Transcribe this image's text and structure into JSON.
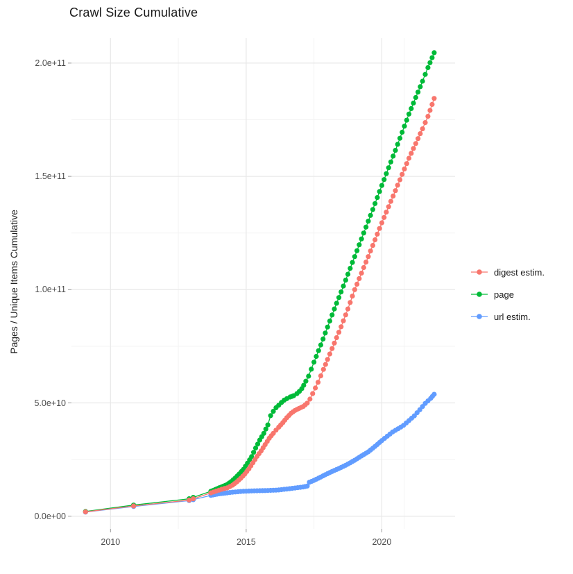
{
  "title": "Crawl Size Cumulative",
  "y_axis_title": "Pages / Unique Items Cumulative",
  "legend": {
    "position": "right",
    "items": [
      {
        "label": "digest estim.",
        "color": "#F8766D"
      },
      {
        "label": "page",
        "color": "#00BA38"
      },
      {
        "label": "url estim.",
        "color": "#619CFF"
      }
    ]
  },
  "chart_data": {
    "type": "scatter",
    "title": "Crawl Size Cumulative",
    "xlabel": "",
    "ylabel": "Pages / Unique Items Cumulative",
    "units_note": "points are [decimal_year, cumulative_count_in_billions]; 1 billion = 1e9",
    "x_domain": [
      2008.56,
      2022.7
    ],
    "y_domain_billions": [
      -5.6,
      211
    ],
    "grid": true,
    "x_ticks": [
      {
        "label": "2010",
        "year": 2010
      },
      {
        "label": "2015",
        "year": 2015
      },
      {
        "label": "2020",
        "year": 2020
      }
    ],
    "x_minor_years": [
      2012.5,
      2017.5
    ],
    "x_extra_gridline_year": 2020.82,
    "y_ticks": [
      {
        "label": "0.0e+00",
        "v": 0
      },
      {
        "label": "5.0e+10",
        "v": 50
      },
      {
        "label": "1.0e+11",
        "v": 100
      },
      {
        "label": "1.5e+11",
        "v": 150
      },
      {
        "label": "2.0e+11",
        "v": 200
      }
    ],
    "y_minor_billions": [
      25,
      75,
      125,
      175
    ],
    "style": {
      "major_grid_color": "#e8e8e8",
      "minor_grid_color": "#f3f3f3",
      "tick_color": "#999999",
      "dot_radius": 3.6,
      "line_width": 1.3,
      "dense_dot_step_years": 0.085
    },
    "series": [
      {
        "name": "url estim.",
        "color": "#619CFF",
        "dense_from": 2013.6,
        "points": [
          [
            2009.08,
            1.8
          ],
          [
            2010.85,
            4.3
          ],
          [
            2012.9,
            6.9
          ],
          [
            2013.05,
            7.3
          ],
          [
            2013.7,
            9.2
          ],
          [
            2014.0,
            9.9
          ],
          [
            2014.3,
            10.3
          ],
          [
            2014.5,
            10.6
          ],
          [
            2014.7,
            10.8
          ],
          [
            2014.9,
            11.0
          ],
          [
            2015.1,
            11.1
          ],
          [
            2015.3,
            11.2
          ],
          [
            2015.5,
            11.25
          ],
          [
            2015.7,
            11.3
          ],
          [
            2015.9,
            11.4
          ],
          [
            2016.1,
            11.5
          ],
          [
            2016.3,
            11.7
          ],
          [
            2016.5,
            12.0
          ],
          [
            2016.7,
            12.3
          ],
          [
            2016.9,
            12.6
          ],
          [
            2017.1,
            12.9
          ],
          [
            2017.25,
            13.3
          ],
          [
            2017.33,
            15.0
          ],
          [
            2017.5,
            15.8
          ],
          [
            2017.75,
            17.3
          ],
          [
            2018.0,
            18.8
          ],
          [
            2018.25,
            20.2
          ],
          [
            2018.5,
            21.5
          ],
          [
            2018.75,
            23.0
          ],
          [
            2019.0,
            24.7
          ],
          [
            2019.25,
            26.6
          ],
          [
            2019.5,
            28.4
          ],
          [
            2019.75,
            30.8
          ],
          [
            2020.0,
            33.4
          ],
          [
            2020.2,
            35.3
          ],
          [
            2020.4,
            37.2
          ],
          [
            2020.6,
            38.6
          ],
          [
            2020.8,
            40.1
          ],
          [
            2021.0,
            42.2
          ],
          [
            2021.2,
            44.3
          ],
          [
            2021.4,
            47.0
          ],
          [
            2021.6,
            49.8
          ],
          [
            2021.8,
            52.0
          ],
          [
            2021.93,
            53.8
          ]
        ]
      },
      {
        "name": "page",
        "color": "#00BA38",
        "dense_from": 2013.6,
        "points": [
          [
            2009.08,
            2.1
          ],
          [
            2010.85,
            4.9
          ],
          [
            2012.9,
            7.7
          ],
          [
            2013.05,
            8.3
          ],
          [
            2013.7,
            11.0
          ],
          [
            2013.85,
            11.7
          ],
          [
            2014.0,
            12.5
          ],
          [
            2014.15,
            13.2
          ],
          [
            2014.3,
            14.0
          ],
          [
            2014.45,
            15.3
          ],
          [
            2014.6,
            16.9
          ],
          [
            2014.75,
            18.7
          ],
          [
            2014.9,
            20.7
          ],
          [
            2015.05,
            23.4
          ],
          [
            2015.2,
            26.3
          ],
          [
            2015.35,
            30.1
          ],
          [
            2015.5,
            33.6
          ],
          [
            2015.65,
            36.6
          ],
          [
            2015.8,
            40.3
          ],
          [
            2015.9,
            44.4
          ],
          [
            2016.0,
            46.3
          ],
          [
            2016.1,
            47.9
          ],
          [
            2016.2,
            49.0
          ],
          [
            2016.3,
            50.2
          ],
          [
            2016.4,
            51.2
          ],
          [
            2016.5,
            51.9
          ],
          [
            2016.62,
            52.6
          ],
          [
            2016.75,
            53.2
          ],
          [
            2016.87,
            54.1
          ],
          [
            2016.96,
            55.1
          ],
          [
            2017.05,
            56.3
          ],
          [
            2017.12,
            57.8
          ],
          [
            2017.2,
            59.6
          ],
          [
            2017.3,
            61.8
          ],
          [
            2017.5,
            68.0
          ],
          [
            2017.75,
            75.6
          ],
          [
            2018.0,
            83.5
          ],
          [
            2018.25,
            91.5
          ],
          [
            2018.5,
            99.0
          ],
          [
            2018.75,
            106.8
          ],
          [
            2019.0,
            114.6
          ],
          [
            2019.25,
            122.4
          ],
          [
            2019.5,
            130.2
          ],
          [
            2019.75,
            138.0
          ],
          [
            2020.0,
            146.0
          ],
          [
            2020.25,
            153.8
          ],
          [
            2020.5,
            161.5
          ],
          [
            2020.75,
            169.5
          ],
          [
            2021.0,
            177.5
          ],
          [
            2021.25,
            184.8
          ],
          [
            2021.5,
            192.0
          ],
          [
            2021.7,
            198.0
          ],
          [
            2021.93,
            204.6
          ]
        ]
      },
      {
        "name": "digest estim.",
        "color": "#F8766D",
        "dense_from": 2013.6,
        "points": [
          [
            2009.08,
            1.9
          ],
          [
            2010.85,
            4.5
          ],
          [
            2012.9,
            7.1
          ],
          [
            2013.05,
            7.7
          ],
          [
            2013.7,
            10.3
          ],
          [
            2013.9,
            11.1
          ],
          [
            2014.1,
            11.9
          ],
          [
            2014.3,
            12.5
          ],
          [
            2014.5,
            13.7
          ],
          [
            2014.65,
            15.1
          ],
          [
            2014.8,
            16.7
          ],
          [
            2014.95,
            18.6
          ],
          [
            2015.1,
            20.9
          ],
          [
            2015.25,
            23.6
          ],
          [
            2015.4,
            26.4
          ],
          [
            2015.55,
            28.8
          ],
          [
            2015.7,
            31.6
          ],
          [
            2015.85,
            34.4
          ],
          [
            2016.0,
            36.6
          ],
          [
            2016.1,
            38.0
          ],
          [
            2016.2,
            39.3
          ],
          [
            2016.35,
            41.3
          ],
          [
            2016.5,
            43.5
          ],
          [
            2016.65,
            45.4
          ],
          [
            2016.8,
            46.7
          ],
          [
            2016.95,
            47.6
          ],
          [
            2017.1,
            48.4
          ],
          [
            2017.25,
            49.9
          ],
          [
            2017.35,
            51.7
          ],
          [
            2017.45,
            54.1
          ],
          [
            2017.55,
            56.6
          ],
          [
            2017.65,
            59.1
          ],
          [
            2017.85,
            64.8
          ],
          [
            2018.0,
            69.2
          ],
          [
            2018.25,
            76.4
          ],
          [
            2018.5,
            83.6
          ],
          [
            2018.75,
            91.5
          ],
          [
            2019.0,
            100.0
          ],
          [
            2019.25,
            107.3
          ],
          [
            2019.5,
            114.6
          ],
          [
            2019.75,
            122.0
          ],
          [
            2020.0,
            129.5
          ],
          [
            2020.25,
            136.6
          ],
          [
            2020.5,
            143.7
          ],
          [
            2020.75,
            150.9
          ],
          [
            2021.0,
            158.0
          ],
          [
            2021.25,
            164.5
          ],
          [
            2021.5,
            171.0
          ],
          [
            2021.7,
            176.5
          ],
          [
            2021.93,
            184.4
          ]
        ]
      }
    ]
  }
}
